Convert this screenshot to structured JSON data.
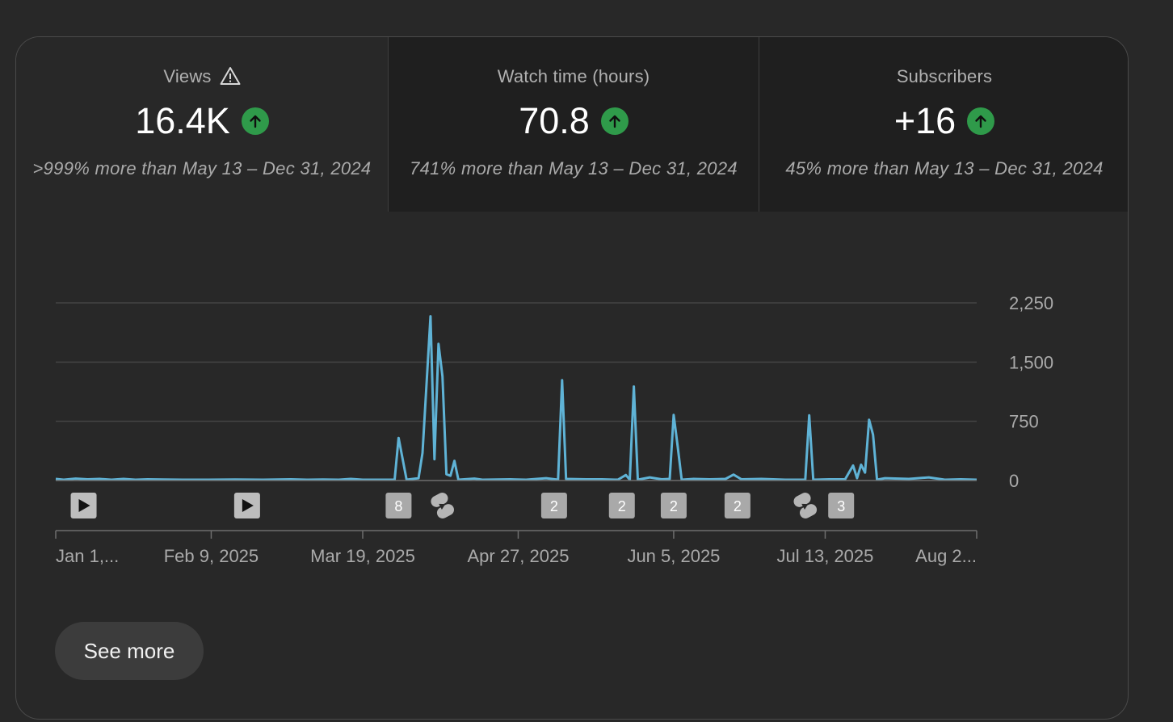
{
  "tabs": [
    {
      "title": "Views",
      "value": "16.4K",
      "comparison": ">999% more than May 13 – Dec 31, 2024",
      "warning_icon": "warning-icon",
      "trend_icon": "arrow-up-icon"
    },
    {
      "title": "Watch time (hours)",
      "value": "70.8",
      "comparison": "741% more than May 13 – Dec 31, 2024",
      "trend_icon": "arrow-up-icon"
    },
    {
      "title": "Subscribers",
      "value": "+16",
      "comparison": "45% more than May 13 – Dec 31, 2024",
      "trend_icon": "arrow-up-icon"
    }
  ],
  "colors": {
    "line": "#5fb3d6",
    "trend_up": "#2f9a4a",
    "grid": "#444444"
  },
  "chart_data": {
    "type": "line",
    "ylim": [
      0,
      2250
    ],
    "y_ticks": [
      "2,250",
      "1,500",
      "750",
      "0"
    ],
    "y_tick_values": [
      2250,
      1500,
      750,
      0
    ],
    "x_ticks": [
      "Jan 1,...",
      "Feb 9, 2025",
      "Mar 19, 2025",
      "Apr 27, 2025",
      "Jun 5, 2025",
      "Jul 13, 2025",
      "Aug 2..."
    ],
    "x_tick_values": [
      "2025-01-01",
      "2025-02-09",
      "2025-03-19",
      "2025-04-27",
      "2025-06-05",
      "2025-07-13",
      "2025-08-20"
    ],
    "series": [
      {
        "points": [
          [
            "2025-01-01",
            20
          ],
          [
            "2025-01-03",
            10
          ],
          [
            "2025-01-06",
            25
          ],
          [
            "2025-01-09",
            15
          ],
          [
            "2025-01-12",
            20
          ],
          [
            "2025-01-15",
            10
          ],
          [
            "2025-01-18",
            20
          ],
          [
            "2025-01-21",
            10
          ],
          [
            "2025-01-24",
            15
          ],
          [
            "2025-01-28",
            12
          ],
          [
            "2025-02-02",
            10
          ],
          [
            "2025-02-08",
            10
          ],
          [
            "2025-02-15",
            12
          ],
          [
            "2025-02-22",
            10
          ],
          [
            "2025-03-01",
            15
          ],
          [
            "2025-03-05",
            10
          ],
          [
            "2025-03-09",
            12
          ],
          [
            "2025-03-13",
            10
          ],
          [
            "2025-03-16",
            20
          ],
          [
            "2025-03-19",
            10
          ],
          [
            "2025-03-23",
            10
          ],
          [
            "2025-03-27",
            10
          ],
          [
            "2025-03-28",
            540
          ],
          [
            "2025-03-30",
            10
          ],
          [
            "2025-04-02",
            30
          ],
          [
            "2025-04-03",
            350
          ],
          [
            "2025-04-05",
            2080
          ],
          [
            "2025-04-06",
            270
          ],
          [
            "2025-04-07",
            1730
          ],
          [
            "2025-04-08",
            1320
          ],
          [
            "2025-04-09",
            80
          ],
          [
            "2025-04-10",
            60
          ],
          [
            "2025-04-11",
            250
          ],
          [
            "2025-04-12",
            10
          ],
          [
            "2025-04-16",
            25
          ],
          [
            "2025-04-18",
            10
          ],
          [
            "2025-04-25",
            15
          ],
          [
            "2025-04-29",
            10
          ],
          [
            "2025-05-04",
            30
          ],
          [
            "2025-05-07",
            10
          ],
          [
            "2025-05-08",
            1270
          ],
          [
            "2025-05-09",
            20
          ],
          [
            "2025-05-14",
            15
          ],
          [
            "2025-05-18",
            15
          ],
          [
            "2025-05-22",
            10
          ],
          [
            "2025-05-24",
            70
          ],
          [
            "2025-05-25",
            10
          ],
          [
            "2025-05-26",
            1190
          ],
          [
            "2025-05-27",
            10
          ],
          [
            "2025-05-30",
            40
          ],
          [
            "2025-06-02",
            15
          ],
          [
            "2025-06-04",
            20
          ],
          [
            "2025-06-05",
            830
          ],
          [
            "2025-06-06",
            430
          ],
          [
            "2025-06-07",
            10
          ],
          [
            "2025-06-10",
            20
          ],
          [
            "2025-06-14",
            15
          ],
          [
            "2025-06-18",
            20
          ],
          [
            "2025-06-20",
            75
          ],
          [
            "2025-06-22",
            15
          ],
          [
            "2025-06-27",
            20
          ],
          [
            "2025-07-03",
            10
          ],
          [
            "2025-07-08",
            10
          ],
          [
            "2025-07-09",
            825
          ],
          [
            "2025-07-10",
            10
          ],
          [
            "2025-07-14",
            15
          ],
          [
            "2025-07-18",
            15
          ],
          [
            "2025-07-20",
            190
          ],
          [
            "2025-07-21",
            30
          ],
          [
            "2025-07-22",
            200
          ],
          [
            "2025-07-23",
            100
          ],
          [
            "2025-07-24",
            770
          ],
          [
            "2025-07-25",
            580
          ],
          [
            "2025-07-26",
            10
          ],
          [
            "2025-07-28",
            30
          ],
          [
            "2025-08-03",
            20
          ],
          [
            "2025-08-08",
            40
          ],
          [
            "2025-08-12",
            10
          ],
          [
            "2025-08-16",
            15
          ],
          [
            "2025-08-20",
            10
          ]
        ]
      }
    ],
    "markers": [
      {
        "type": "video",
        "date": "2025-01-08",
        "label": ""
      },
      {
        "type": "video",
        "date": "2025-02-18",
        "label": ""
      },
      {
        "type": "count",
        "date": "2025-03-28",
        "label": "8"
      },
      {
        "type": "shorts",
        "date": "2025-04-08",
        "label": ""
      },
      {
        "type": "count",
        "date": "2025-05-06",
        "label": "2"
      },
      {
        "type": "count",
        "date": "2025-05-23",
        "label": "2"
      },
      {
        "type": "count",
        "date": "2025-06-05",
        "label": "2"
      },
      {
        "type": "count",
        "date": "2025-06-21",
        "label": "2"
      },
      {
        "type": "shorts",
        "date": "2025-07-08",
        "label": ""
      },
      {
        "type": "count",
        "date": "2025-07-17",
        "label": "3"
      }
    ]
  },
  "see_more_label": "See more"
}
